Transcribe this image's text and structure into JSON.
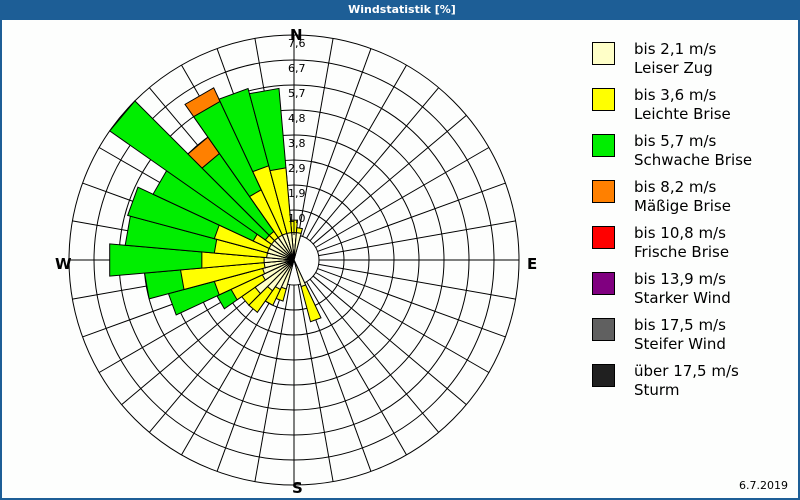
{
  "window": {
    "title": "Windstatistik [%]"
  },
  "compass": {
    "n": "N",
    "e": "E",
    "s": "S",
    "w": "W"
  },
  "footer": {
    "date": "6.7.2019"
  },
  "legend": [
    {
      "range": "bis 2,1 m/s",
      "name": "Leiser Zug",
      "color": "#ffffc8"
    },
    {
      "range": "bis 3,6 m/s",
      "name": "Leichte Brise",
      "color": "#ffff00"
    },
    {
      "range": "bis 5,7 m/s",
      "name": "Schwache Brise",
      "color": "#00ee00"
    },
    {
      "range": "bis 8,2 m/s",
      "name": "Mäßige Brise",
      "color": "#ff8000"
    },
    {
      "range": "bis 10,8 m/s",
      "name": "Frische Brise",
      "color": "#ff0000"
    },
    {
      "range": "bis 13,9 m/s",
      "name": "Starker Wind",
      "color": "#800080"
    },
    {
      "range": "bis 17,5 m/s",
      "name": "Steifer Wind",
      "color": "#606060"
    },
    {
      "range": "über 17,5 m/s",
      "name": "Sturm",
      "color": "#202020"
    }
  ],
  "chart_data": {
    "type": "wind-rose",
    "title": "Windstatistik [%]",
    "date": "6.7.2019",
    "unit": "%",
    "ring_labels": [
      "1,0",
      "1,9",
      "2,9",
      "3,8",
      "4,8",
      "5,7",
      "6,7",
      "7,6"
    ],
    "ring_values": [
      1.0,
      1.9,
      2.9,
      3.8,
      4.8,
      5.7,
      6.7,
      7.6
    ],
    "rmax": 7.6,
    "directions_deg_step": 10,
    "speed_classes": [
      "bis 2,1 m/s",
      "bis 3,6 m/s",
      "bis 5,7 m/s",
      "bis 8,2 m/s",
      "bis 10,8 m/s",
      "bis 13,9 m/s",
      "bis 17,5 m/s",
      "über 17,5 m/s"
    ],
    "series_note": "cumulative % per direction for classes [leiser, leichte, schwache, maessige]",
    "petals": [
      {
        "dir": 0,
        "cum": [
          0.1,
          0.6,
          0.6,
          0.6
        ]
      },
      {
        "dir": 10,
        "cum": [
          0.1,
          0.3,
          0.3,
          0.3
        ]
      },
      {
        "dir": 160,
        "cum": [
          0.1,
          1.5,
          1.5,
          1.5
        ]
      },
      {
        "dir": 200,
        "cum": [
          0.2,
          0.7,
          0.7,
          0.7
        ]
      },
      {
        "dir": 210,
        "cum": [
          0.3,
          1.0,
          1.0,
          1.0
        ]
      },
      {
        "dir": 220,
        "cum": [
          0.5,
          1.5,
          1.5,
          1.5
        ]
      },
      {
        "dir": 230,
        "cum": [
          0.9,
          1.5,
          1.5,
          1.5
        ]
      },
      {
        "dir": 240,
        "cum": [
          0.4,
          1.7,
          2.3,
          2.3
        ]
      },
      {
        "dir": 250,
        "cum": [
          0.3,
          2.2,
          4.0,
          4.0
        ]
      },
      {
        "dir": 260,
        "cum": [
          0.2,
          3.4,
          4.8,
          4.8
        ]
      },
      {
        "dir": 270,
        "cum": [
          0.2,
          2.6,
          6.1,
          6.1
        ]
      },
      {
        "dir": 280,
        "cum": [
          0.1,
          2.1,
          5.5,
          5.5
        ]
      },
      {
        "dir": 290,
        "cum": [
          0.1,
          2.2,
          5.6,
          5.6
        ]
      },
      {
        "dir": 300,
        "cum": [
          0.1,
          0.8,
          5.0,
          5.0
        ]
      },
      {
        "dir": 310,
        "cum": [
          0.1,
          0.4,
          7.6,
          7.6
        ]
      },
      {
        "dir": 320,
        "cum": [
          0.1,
          0.4,
          4.0,
          4.8
        ]
      },
      {
        "dir": 330,
        "cum": [
          0.1,
          2.0,
          5.7,
          6.3
        ]
      },
      {
        "dir": 340,
        "cum": [
          0.1,
          2.8,
          5.8,
          5.8
        ]
      },
      {
        "dir": 350,
        "cum": [
          0.1,
          2.6,
          5.6,
          5.6
        ]
      }
    ],
    "legend_position": "right",
    "grid": true
  }
}
